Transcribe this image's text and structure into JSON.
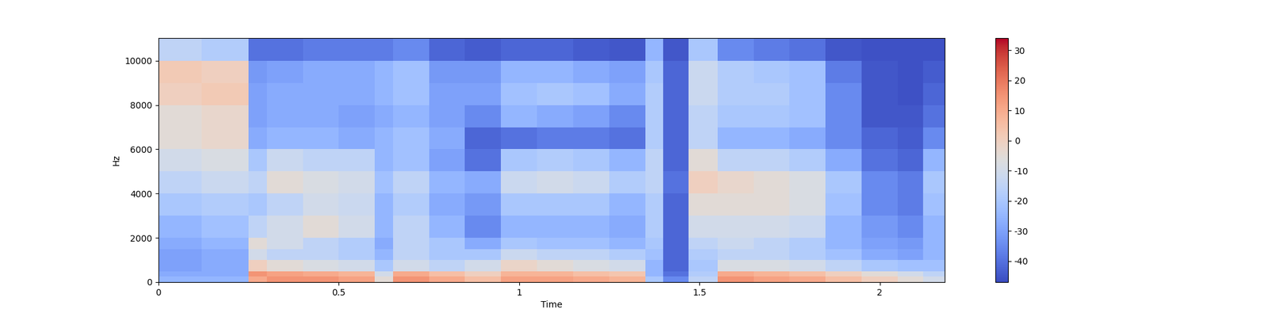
{
  "chart_data": {
    "type": "heatmap",
    "x_label": "Time",
    "y_label": "Hz",
    "xlim": [
      0,
      2.18
    ],
    "xticks": [
      0,
      0.5,
      1,
      1.5,
      2
    ],
    "ylim": [
      0,
      11025
    ],
    "yticks": [
      0,
      2000,
      4000,
      6000,
      8000,
      10000
    ],
    "time_edges": [
      0,
      0.12,
      0.25,
      0.3,
      0.4,
      0.5,
      0.6,
      0.65,
      0.75,
      0.85,
      0.95,
      1.05,
      1.15,
      1.25,
      1.35,
      1.4,
      1.47,
      1.55,
      1.65,
      1.75,
      1.85,
      1.95,
      2.05,
      2.12,
      2.18
    ],
    "freq_edges": [
      0,
      250,
      500,
      1000,
      1500,
      2000,
      3000,
      4000,
      5000,
      6000,
      7000,
      8000,
      9000,
      10000,
      11025
    ],
    "cells": [
      [
        -25,
        -28,
        -30,
        -30,
        -28,
        -25,
        -20,
        -15,
        -10,
        -5,
        -5,
        0,
        2,
        -15
      ],
      [
        -25,
        -28,
        -28,
        -28,
        -25,
        -22,
        -18,
        -12,
        -8,
        -3,
        -3,
        2,
        0,
        -18
      ],
      [
        10,
        15,
        0,
        -10,
        -5,
        -15,
        -20,
        -15,
        -20,
        -28,
        -30,
        -30,
        -32,
        -40
      ],
      [
        15,
        12,
        -5,
        -15,
        -10,
        -10,
        -15,
        -5,
        -12,
        -25,
        -28,
        -28,
        -30,
        -40
      ],
      [
        15,
        10,
        -8,
        -15,
        -15,
        -5,
        -10,
        -8,
        -15,
        -25,
        -28,
        -28,
        -28,
        -38
      ],
      [
        12,
        8,
        -10,
        -18,
        -18,
        -10,
        -12,
        -10,
        -15,
        -28,
        -30,
        -28,
        -28,
        -38
      ],
      [
        -5,
        -10,
        -20,
        -25,
        -28,
        -25,
        -25,
        -22,
        -25,
        -25,
        -28,
        -25,
        -25,
        -38
      ],
      [
        15,
        10,
        -10,
        -15,
        -15,
        -15,
        -18,
        -15,
        -22,
        -22,
        -25,
        -22,
        -22,
        -35
      ],
      [
        10,
        5,
        -15,
        -20,
        -20,
        -25,
        -28,
        -25,
        -30,
        -28,
        -30,
        -30,
        -32,
        -42
      ],
      [
        5,
        0,
        -10,
        -20,
        -28,
        -35,
        -32,
        -28,
        -40,
        -42,
        -35,
        -30,
        -32,
        -44
      ],
      [
        12,
        8,
        -2,
        -12,
        -20,
        -25,
        -20,
        -12,
        -20,
        -40,
        -25,
        -22,
        -25,
        -42
      ],
      [
        12,
        8,
        -5,
        -15,
        -22,
        -25,
        -20,
        -10,
        -18,
        -38,
        -28,
        -20,
        -25,
        -42
      ],
      [
        10,
        5,
        -8,
        -15,
        -22,
        -25,
        -20,
        -12,
        -20,
        -38,
        -30,
        -22,
        -28,
        -44
      ],
      [
        8,
        3,
        -10,
        -18,
        -25,
        -28,
        -25,
        -18,
        -25,
        -40,
        -35,
        -28,
        -30,
        -45
      ],
      [
        -20,
        -25,
        -25,
        -22,
        -20,
        -18,
        -18,
        -15,
        -15,
        -18,
        -18,
        -18,
        -20,
        -25
      ],
      [
        -35,
        -40,
        -42,
        -42,
        -42,
        -42,
        -42,
        -40,
        -42,
        -42,
        -42,
        -42,
        -42,
        -45
      ],
      [
        -15,
        -18,
        -20,
        -18,
        -15,
        -10,
        -5,
        0,
        -5,
        -15,
        -15,
        -12,
        -12,
        -20
      ],
      [
        15,
        10,
        -8,
        -15,
        -12,
        -10,
        -5,
        -3,
        -15,
        -25,
        -20,
        -18,
        -18,
        -35
      ],
      [
        12,
        8,
        -8,
        -15,
        -15,
        -10,
        -5,
        -5,
        -15,
        -25,
        -20,
        -18,
        -20,
        -38
      ],
      [
        10,
        5,
        -10,
        -18,
        -18,
        -12,
        -8,
        -8,
        -18,
        -28,
        -22,
        -22,
        -22,
        -40
      ],
      [
        5,
        0,
        -15,
        -22,
        -25,
        -25,
        -22,
        -20,
        -28,
        -35,
        -35,
        -35,
        -38,
        -45
      ],
      [
        0,
        -5,
        -20,
        -28,
        -30,
        -32,
        -35,
        -35,
        -40,
        -42,
        -45,
        -45,
        -45,
        -46
      ],
      [
        -5,
        -10,
        -22,
        -30,
        -32,
        -35,
        -38,
        -38,
        -42,
        -44,
        -45,
        -46,
        -46,
        -46
      ],
      [
        -10,
        -15,
        -22,
        -25,
        -25,
        -25,
        -22,
        -20,
        -25,
        -35,
        -40,
        -42,
        -44,
        -46
      ]
    ],
    "color_range": [
      -47,
      34
    ],
    "color_ticks": [
      -40,
      -30,
      -20,
      -10,
      0,
      10,
      20,
      30
    ]
  }
}
